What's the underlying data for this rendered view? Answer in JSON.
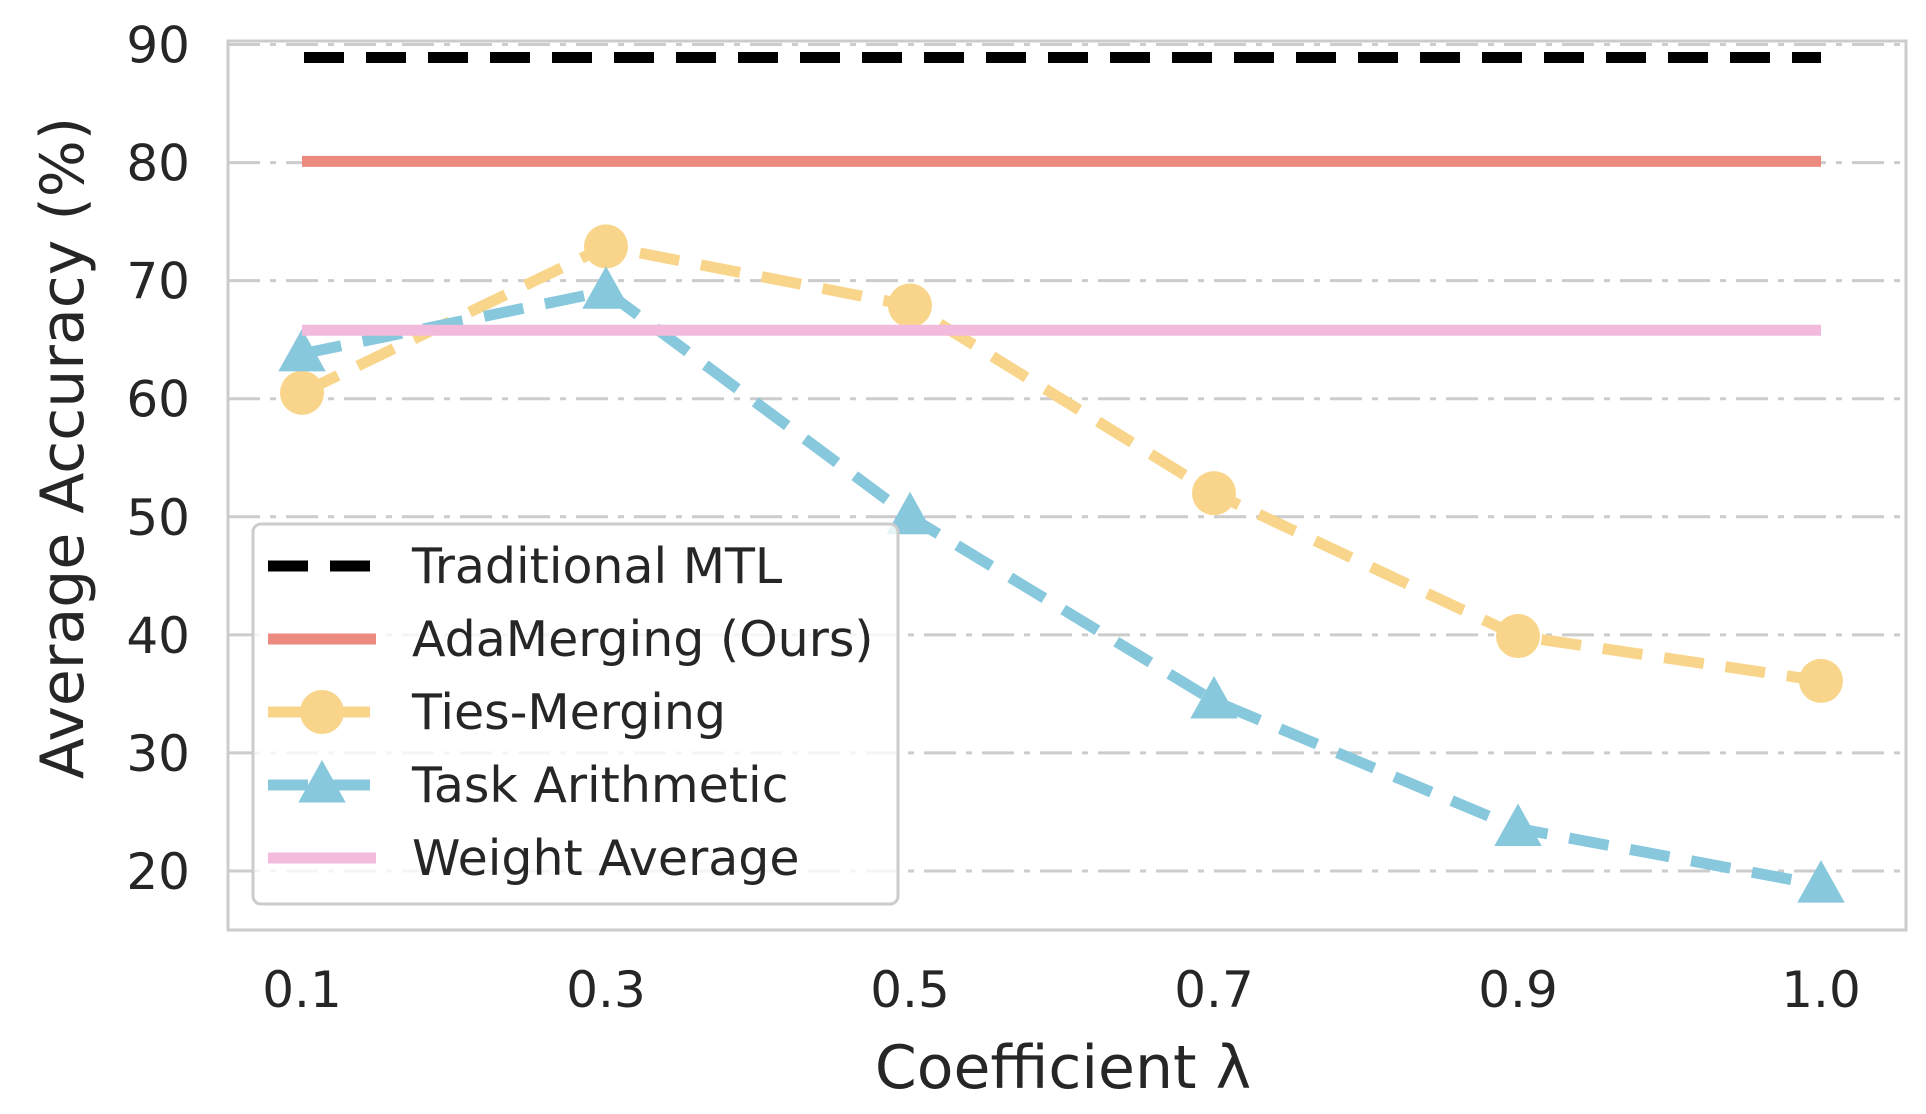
{
  "chart_data": {
    "type": "line",
    "x": [
      0.1,
      0.3,
      0.5,
      0.7,
      0.9,
      1.0
    ],
    "x_tick_labels": [
      "0.1",
      "0.3",
      "0.5",
      "0.7",
      "0.9",
      "1.0"
    ],
    "y_ticks": [
      20,
      30,
      40,
      50,
      60,
      70,
      80,
      90
    ],
    "xlabel": "Coefficient λ",
    "ylabel": "Average Accuracy (%)",
    "ylim": [
      15,
      90.3
    ],
    "grid": "horizontal dash-dot",
    "legend_position": "lower-left",
    "series": [
      {
        "name": "Traditional MTL",
        "kind": "hline",
        "value": 88.9,
        "color": "#000000",
        "style": "dashed",
        "marker": "none"
      },
      {
        "name": "AdaMerging (Ours)",
        "kind": "hline",
        "value": 80.1,
        "color": "#ec8a80",
        "style": "solid",
        "marker": "none"
      },
      {
        "name": "Ties-Merging",
        "kind": "line",
        "values": [
          60.5,
          72.9,
          67.9,
          52.0,
          39.9,
          36.1
        ],
        "color": "#f8d58a",
        "style": "dashed",
        "marker": "circle"
      },
      {
        "name": "Task Arithmetic",
        "kind": "line",
        "values": [
          63.8,
          69.1,
          50.0,
          34.4,
          23.6,
          18.8
        ],
        "color": "#88c8dd",
        "style": "dashed",
        "marker": "triangle"
      },
      {
        "name": "Weight Average",
        "kind": "hline",
        "value": 65.8,
        "color": "#f2bbdd",
        "style": "solid",
        "marker": "none"
      }
    ]
  }
}
